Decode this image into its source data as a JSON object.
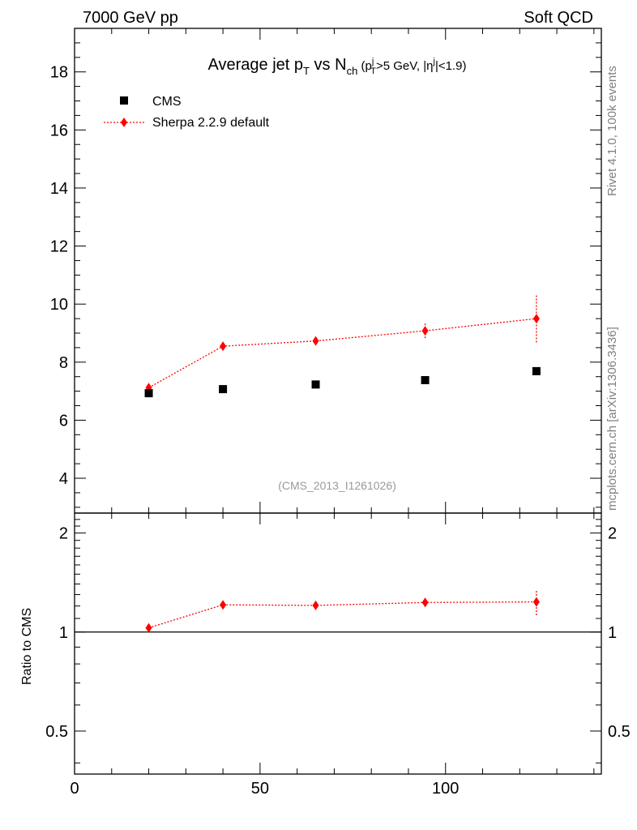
{
  "header": {
    "left": "7000 GeV pp",
    "right": "Soft QCD"
  },
  "side_labels": {
    "rivet": "Rivet 4.1.0,  100k events",
    "mcplots": "mcplots.cern.ch [arXiv:1306.3436]"
  },
  "colors": {
    "data": "#000000",
    "mc": "#ff0000",
    "side_text": "#808080"
  },
  "chart_data": [
    {
      "type": "scatter",
      "panel": "main",
      "title": {
        "main": "Average jet p",
        "sub_T": "T",
        "vs": " vs N",
        "sub_ch": "ch",
        "cut_open": " (p",
        "cut_sup_j": "j",
        "cut_sub_T": "T",
        "cut_mid": ">5 GeV, |η",
        "cut_sup_j2": "j",
        "cut_close": "|<1.9)"
      },
      "xlabel": "",
      "ylabel": "",
      "xlim": [
        0,
        142
      ],
      "ylim": [
        2.8,
        19.5
      ],
      "x_ticks": [
        0,
        50,
        100
      ],
      "y_ticks": [
        4,
        6,
        8,
        10,
        12,
        14,
        16,
        18
      ],
      "y_tick_labels": [
        "4",
        "6",
        "8",
        "10",
        "12",
        "14",
        "16",
        "18"
      ],
      "legend": [
        "CMS",
        "Sherpa 2.2.9 default"
      ],
      "legend_position": "top-left",
      "reference_label": "(CMS_2013_I1261026)",
      "series": [
        {
          "name": "CMS",
          "marker": "square",
          "color": "#000000",
          "x": [
            20,
            40,
            65,
            94.5,
            124.5
          ],
          "y": [
            6.93,
            7.07,
            7.23,
            7.38,
            7.69
          ],
          "yerr": [
            0,
            0,
            0,
            0,
            0
          ]
        },
        {
          "name": "Sherpa 2.2.9 default",
          "marker": "diamond",
          "line": "dotted",
          "color": "#ff0000",
          "x": [
            20,
            40,
            65,
            94.5,
            124.5
          ],
          "y": [
            7.12,
            8.55,
            8.73,
            9.08,
            9.5
          ],
          "yerr": [
            0.08,
            0.08,
            0.1,
            0.25,
            0.82
          ]
        }
      ]
    },
    {
      "type": "scatter",
      "panel": "ratio",
      "ylabel": "Ratio to CMS",
      "xlim": [
        0,
        142
      ],
      "ylim": [
        0.37,
        2.3
      ],
      "log_y": true,
      "x_ticks": [
        0,
        50,
        100
      ],
      "x_tick_labels": [
        "0",
        "50",
        "100"
      ],
      "y_ticks": [
        0.5,
        1,
        2
      ],
      "y_tick_labels": [
        "0.5",
        "1",
        "2"
      ],
      "reference_line": 1,
      "series": [
        {
          "name": "Sherpa 2.2.9 default",
          "marker": "diamond",
          "line": "dotted",
          "color": "#ff0000",
          "x": [
            20,
            40,
            65,
            94.5,
            124.5
          ],
          "y": [
            1.03,
            1.21,
            1.205,
            1.23,
            1.235
          ],
          "yerr": [
            0.012,
            0.012,
            0.014,
            0.035,
            0.11
          ]
        }
      ]
    }
  ]
}
